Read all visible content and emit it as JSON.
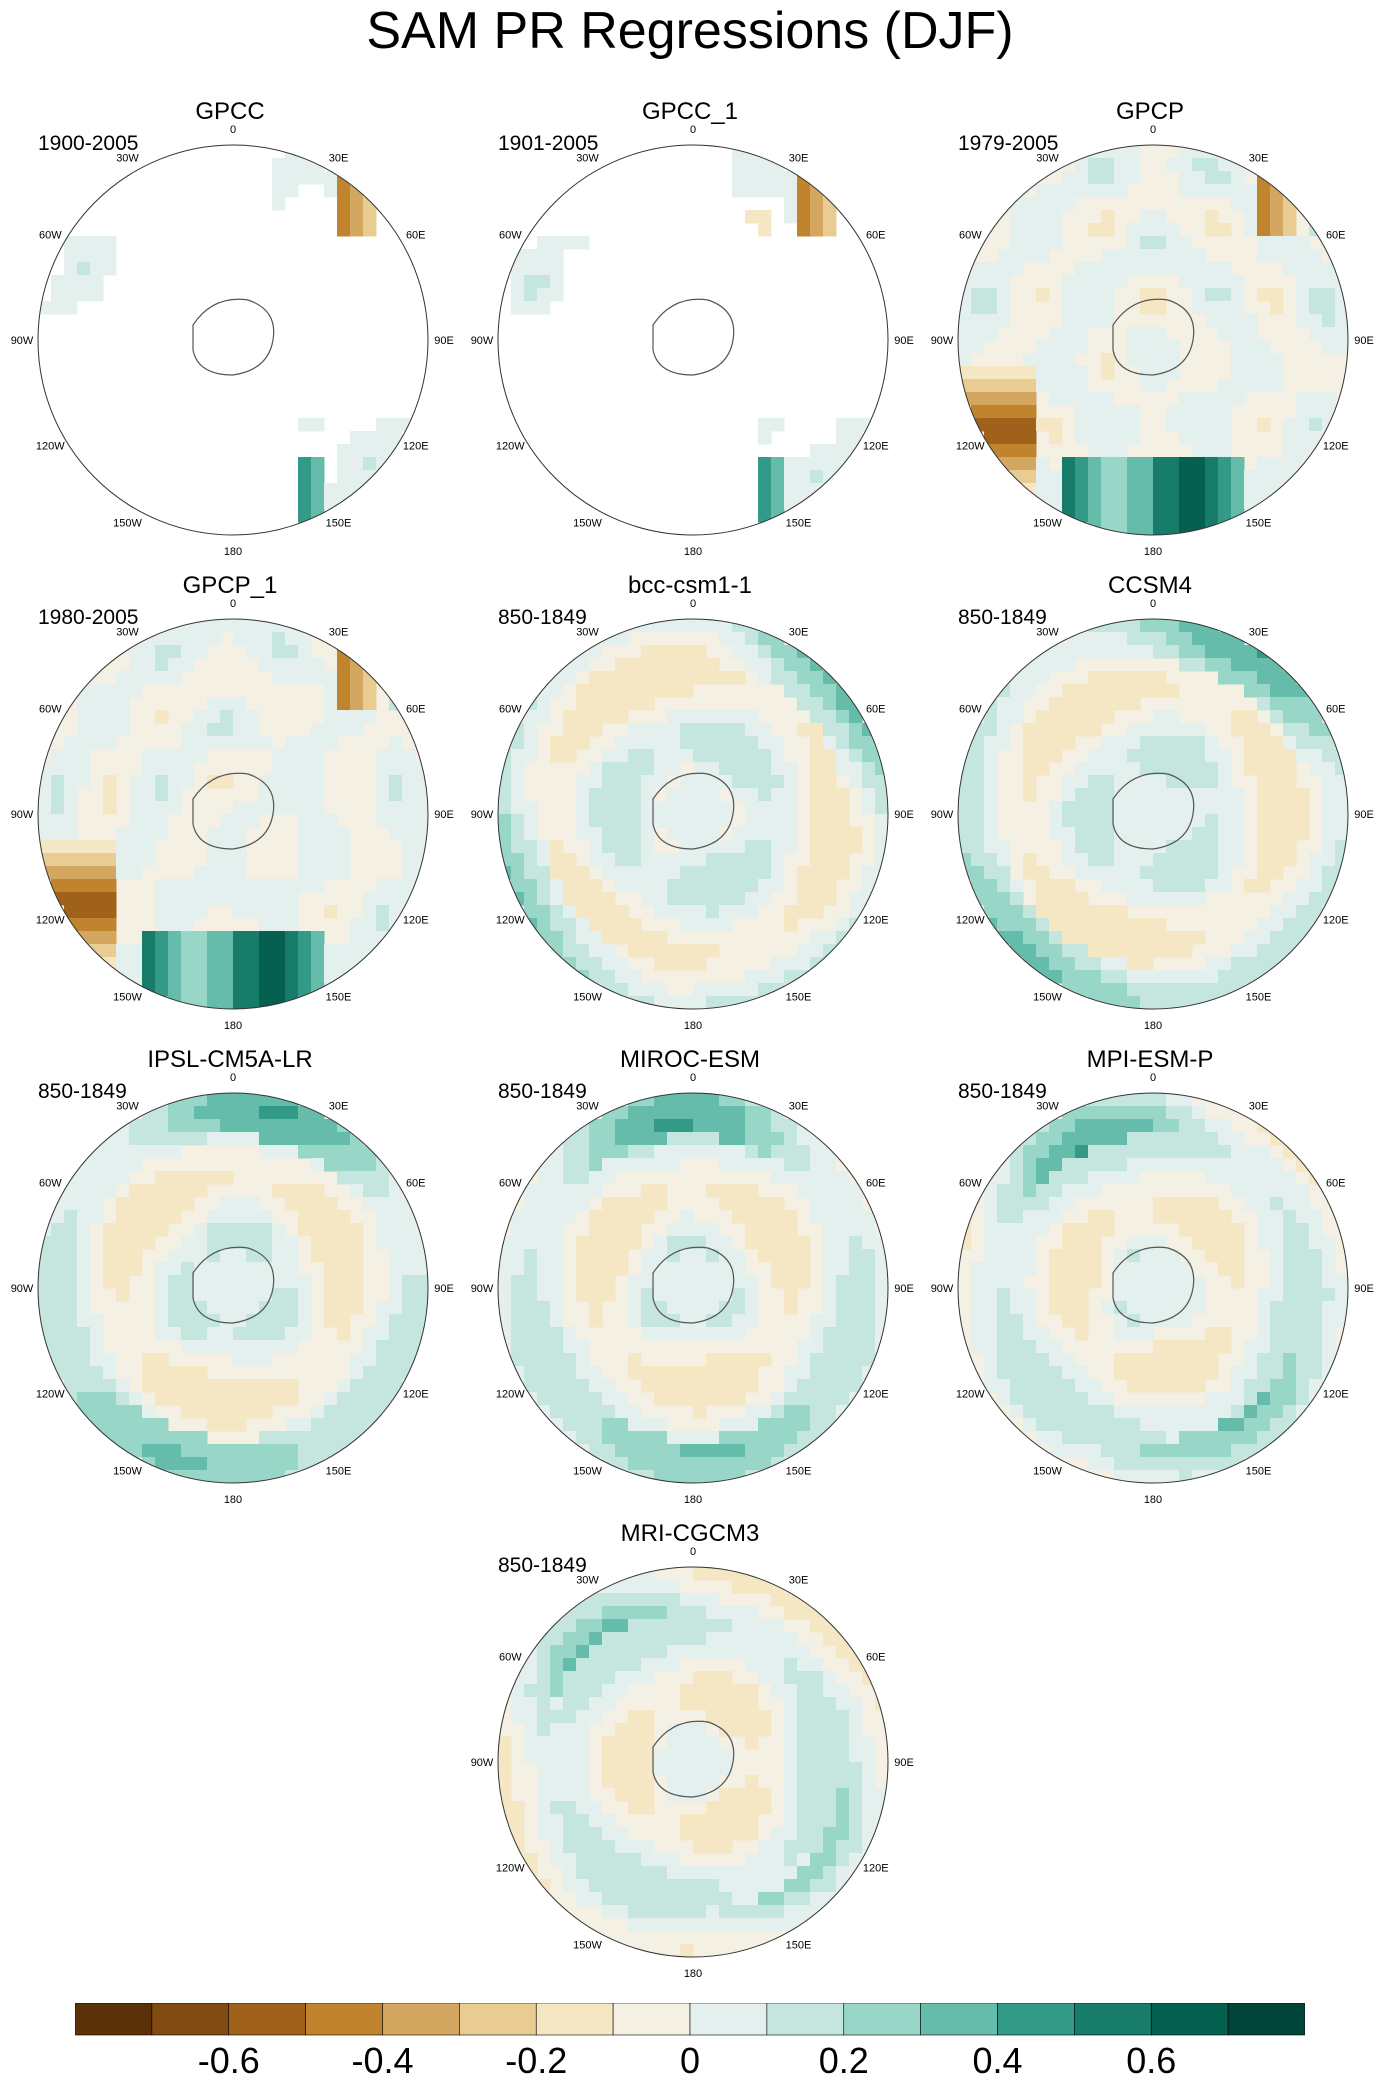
{
  "figure": {
    "title": "SAM PR Regressions (DJF)"
  },
  "panels": [
    {
      "title": "GPCC",
      "period": "1900-2005",
      "field": "land_only"
    },
    {
      "title": "GPCC_1",
      "period": "1901-2005",
      "field": "land_only"
    },
    {
      "title": "GPCP",
      "period": "1979-2005",
      "field": "observed"
    },
    {
      "title": "GPCP_1",
      "period": "1980-2005",
      "field": "observed"
    },
    {
      "title": "bcc-csm1-1",
      "period": "850-1849",
      "field": "model"
    },
    {
      "title": "CCSM4",
      "period": "850-1849",
      "field": "model"
    },
    {
      "title": "IPSL-CM5A-LR",
      "period": "850-1849",
      "field": "model"
    },
    {
      "title": "MIROC-ESM",
      "period": "850-1849",
      "field": "model"
    },
    {
      "title": "MPI-ESM-P",
      "period": "850-1849",
      "field": "model"
    },
    {
      "title": "MRI-CGCM3",
      "period": "850-1849",
      "field": "model"
    }
  ],
  "map_labels": {
    "lon_0": "0",
    "lon_30e": "30E",
    "lon_60e": "60E",
    "lon_90e": "90E",
    "lon_120e": "120E",
    "lon_150e": "150E",
    "lon_180": "180",
    "lon_150w": "150W",
    "lon_120w": "120W",
    "lon_90w": "90W",
    "lon_60w": "60W",
    "lon_30w": "30W"
  },
  "colorbar": {
    "labels": [
      "-0.6",
      "-0.4",
      "-0.2",
      "0",
      "0.2",
      "0.4",
      "0.6"
    ],
    "label_values": [
      -0.6,
      -0.4,
      -0.2,
      0,
      0.2,
      0.4,
      0.6
    ],
    "levels": [
      -0.8,
      -0.7,
      -0.6,
      -0.5,
      -0.4,
      -0.3,
      -0.2,
      -0.1,
      0,
      0.1,
      0.2,
      0.3,
      0.4,
      0.5,
      0.6,
      0.7,
      0.8
    ],
    "colors": [
      "#5a3108",
      "#804a10",
      "#a0621a",
      "#c0832e",
      "#d4a760",
      "#e8cc92",
      "#f5e6c4",
      "#f5f0e4",
      "#e4f0ee",
      "#c4e6df",
      "#98d6c8",
      "#66bcaa",
      "#349a88",
      "#187c6a",
      "#06604f",
      "#01443a"
    ]
  }
}
